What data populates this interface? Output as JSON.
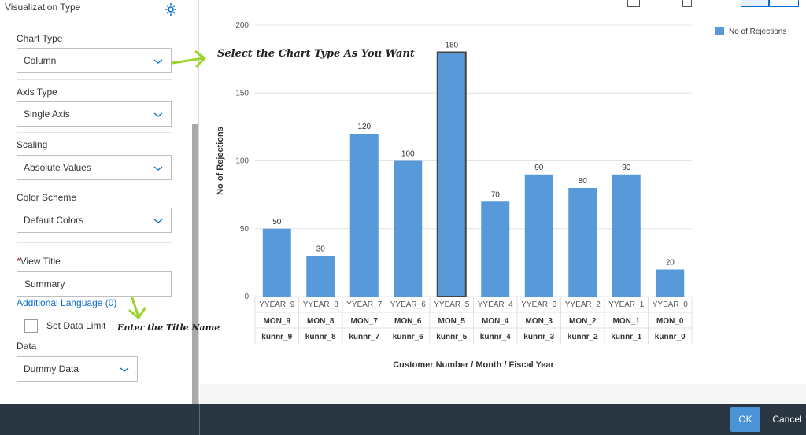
{
  "panel": {
    "title": "Visualization Type",
    "chart_type": {
      "label": "Chart Type",
      "value": "Column"
    },
    "axis_type": {
      "label": "Axis Type",
      "value": "Single Axis"
    },
    "scaling": {
      "label": "Scaling",
      "value": "Absolute Values"
    },
    "color_scheme": {
      "label": "Color Scheme",
      "value": "Default Colors"
    },
    "view_title": {
      "required_mark": "*",
      "label": "View Title",
      "value": "Summary"
    },
    "additional_language": "Additional Language (0)",
    "set_data_limit": "Set Data Limit",
    "data": {
      "label": "Data",
      "value": "Dummy Data"
    }
  },
  "annotations": {
    "chart_type_hint": "Select the Chart Type As You Want",
    "title_hint": "Enter the Title Name"
  },
  "footer": {
    "ok": "OK",
    "cancel": "Cancel"
  },
  "colors": {
    "bar": "#5899da",
    "footer": "#2a3642",
    "ok": "#4a93d6",
    "link": "#0a6ed1",
    "arrow": "#9bd42a"
  },
  "chart_data": {
    "type": "bar",
    "categories": [
      [
        "YYEAR_9",
        "MON_9",
        "kunnr_9"
      ],
      [
        "YYEAR_8",
        "MON_8",
        "kunnr_8"
      ],
      [
        "YYEAR_7",
        "MON_7",
        "kunnr_7"
      ],
      [
        "YYEAR_6",
        "MON_6",
        "kunnr_6"
      ],
      [
        "YYEAR_5",
        "MON_5",
        "kunnr_5"
      ],
      [
        "YYEAR_4",
        "MON_4",
        "kunnr_4"
      ],
      [
        "YYEAR_3",
        "MON_3",
        "kunnr_3"
      ],
      [
        "YYEAR_2",
        "MON_2",
        "kunnr_2"
      ],
      [
        "YYEAR_1",
        "MON_1",
        "kunnr_1"
      ],
      [
        "YYEAR_0",
        "MON_0",
        "kunnr_0"
      ]
    ],
    "series": [
      {
        "name": "No of Rejections",
        "values": [
          50,
          30,
          120,
          100,
          180,
          70,
          90,
          80,
          90,
          20
        ]
      }
    ],
    "ylabel": "No of Rejections",
    "xlabel": "Customer Number / Month / Fiscal Year",
    "ylim": [
      0,
      200
    ],
    "yticks": [
      0,
      50,
      100,
      150,
      200
    ],
    "highlighted_category": "YYEAR_5",
    "legend": "top-right",
    "grid": true
  }
}
